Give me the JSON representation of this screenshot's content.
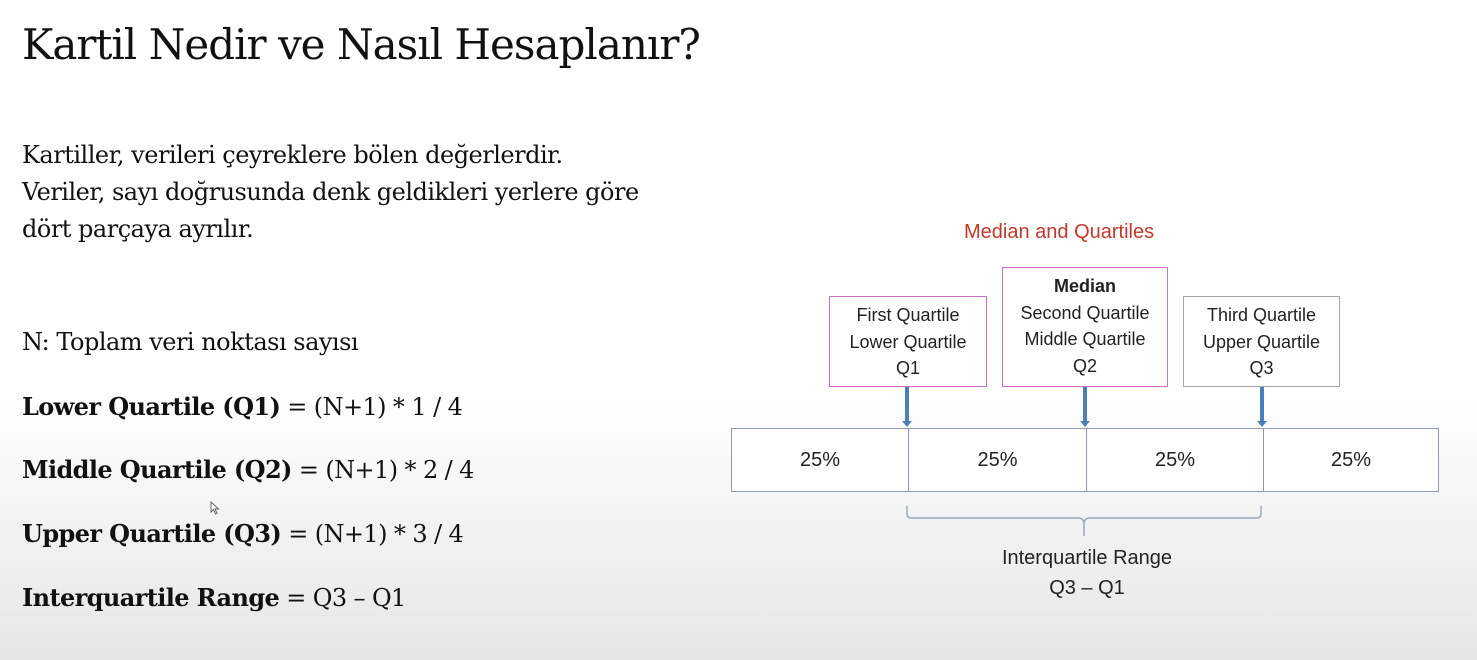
{
  "title": "Kartil Nedir ve Nasıl Hesaplanır?",
  "intro_lines": [
    "Kartiller, verileri çeyreklere bölen değerlerdir.",
    "Veriler, sayı doğrusunda denk geldikleri yerlere göre",
    "dört parçaya ayrılır."
  ],
  "n_definition": "N: Toplam veri noktası sayısı",
  "formulas": [
    {
      "term": "Lower Quartile (Q1)",
      "expr": " = (N+1) * 1 / 4"
    },
    {
      "term": "Middle Quartile (Q2)",
      "expr": " = (N+1) * 2 / 4"
    },
    {
      "term": "Upper Quartile (Q3)",
      "expr": " = (N+1) * 3 / 4"
    },
    {
      "term": "Interquartile Range",
      "expr": " = Q3 – Q1"
    }
  ],
  "diagram": {
    "title": "Median and Quartiles",
    "title_color": "#c0392b",
    "q1_box": [
      "First Quartile",
      "Lower Quartile",
      "Q1"
    ],
    "q2_box": {
      "heading": "Median",
      "lines": [
        "Second Quartile",
        "Middle Quartile",
        "Q2"
      ]
    },
    "q3_box": [
      "Third Quartile",
      "Upper Quartile",
      "Q3"
    ],
    "segments": [
      "25%",
      "25%",
      "25%",
      "25%"
    ],
    "iqr_label": [
      "Interquartile Range",
      "Q3 – Q1"
    ],
    "box_border_color": "#c971c9",
    "arrow_color": "#4a7fb8"
  }
}
